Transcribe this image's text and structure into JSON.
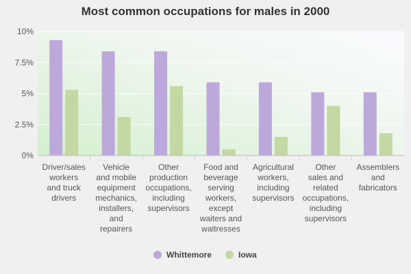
{
  "chart_data": {
    "type": "bar",
    "title": "Most common occupations for males in 2000",
    "xlabel": "",
    "ylabel": "",
    "ylim": [
      0,
      10
    ],
    "yticks": [
      "0%",
      "2.5%",
      "5%",
      "7.5%",
      "10%"
    ],
    "ytick_values": [
      0,
      2.5,
      5,
      7.5,
      10
    ],
    "grid": true,
    "legend_position": "bottom",
    "categories": [
      [
        "Driver/sales",
        "workers",
        "and truck",
        "drivers"
      ],
      [
        "Vehicle",
        "and mobile",
        "equipment",
        "mechanics,",
        "installers,",
        "and",
        "repairers"
      ],
      [
        "Other",
        "production",
        "occupations,",
        "including",
        "supervisors"
      ],
      [
        "Food and",
        "beverage",
        "serving",
        "workers,",
        "except",
        "waiters and",
        "waitresses"
      ],
      [
        "Agricultural",
        "workers,",
        "including",
        "supervisors"
      ],
      [
        "Other",
        "sales and",
        "related",
        "occupations,",
        "including",
        "supervisors"
      ],
      [
        "Assemblers",
        "and",
        "fabricators"
      ]
    ],
    "series": [
      {
        "name": "Whittemore",
        "color": "#bda8db",
        "values": [
          9.3,
          8.4,
          8.4,
          5.9,
          5.9,
          5.1,
          5.1
        ]
      },
      {
        "name": "Iowa",
        "color": "#c4d8a4",
        "values": [
          5.3,
          3.1,
          5.6,
          0.5,
          1.5,
          4.0,
          1.8
        ]
      }
    ]
  }
}
